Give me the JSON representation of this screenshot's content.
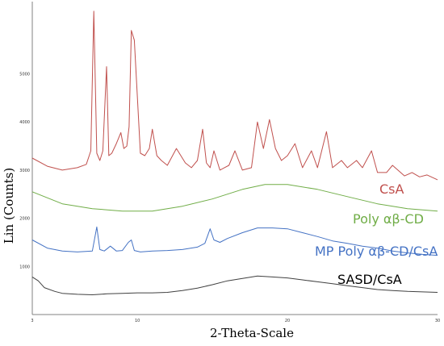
{
  "chart_data": {
    "type": "line",
    "xlabel": "2-Theta-Scale",
    "ylabel": "Lin (Counts)",
    "xlim": [
      3,
      30
    ],
    "ylim": [
      0,
      6500
    ],
    "grid": false,
    "x_ticks": [
      3,
      10,
      20,
      30
    ],
    "y_ticks": [
      1000,
      2000,
      3000,
      4000,
      5000
    ],
    "series": [
      {
        "name": "CsA",
        "color": "#c0504d",
        "x": [
          3,
          4,
          5,
          6,
          6.6,
          6.9,
          7.1,
          7.3,
          7.5,
          7.7,
          7.95,
          8.1,
          8.3,
          8.6,
          8.9,
          9.1,
          9.3,
          9.45,
          9.6,
          9.8,
          10.2,
          10.5,
          10.8,
          11.0,
          11.3,
          11.6,
          12.0,
          12.6,
          13.2,
          13.6,
          14.0,
          14.35,
          14.6,
          14.85,
          15.1,
          15.5,
          15.8,
          16.1,
          16.5,
          17.0,
          17.6,
          18.0,
          18.4,
          18.8,
          19.2,
          19.6,
          20.0,
          20.5,
          21.0,
          21.6,
          22.0,
          22.6,
          23.0,
          23.6,
          24.0,
          24.6,
          25.0,
          25.6,
          26.0,
          26.6,
          27.0,
          27.8,
          28.3,
          28.8,
          29.3,
          30
        ],
        "y": [
          3250,
          3080,
          3000,
          3050,
          3120,
          3400,
          6300,
          3350,
          3200,
          3400,
          5150,
          3300,
          3350,
          3550,
          3780,
          3450,
          3500,
          3900,
          5900,
          5700,
          3350,
          3300,
          3450,
          3850,
          3300,
          3200,
          3100,
          3450,
          3150,
          3050,
          3200,
          3850,
          3150,
          3050,
          3400,
          3000,
          3050,
          3100,
          3400,
          3000,
          3050,
          4000,
          3450,
          4050,
          3450,
          3200,
          3300,
          3550,
          3050,
          3400,
          3050,
          3800,
          3050,
          3200,
          3050,
          3200,
          3050,
          3400,
          2950,
          2950,
          3100,
          2880,
          2950,
          2860,
          2900,
          2800
        ]
      },
      {
        "name": "Poly αβ-CD",
        "color": "#70ad47",
        "x": [
          3,
          5,
          7,
          9,
          11,
          13,
          15,
          17,
          18.5,
          20,
          22,
          24,
          26,
          28,
          30
        ],
        "y": [
          2550,
          2300,
          2200,
          2150,
          2150,
          2250,
          2400,
          2600,
          2700,
          2700,
          2600,
          2450,
          2300,
          2200,
          2150
        ]
      },
      {
        "name": "MP Poly αβ-CD/CsA",
        "color": "#4472c4",
        "x": [
          3,
          4,
          5,
          6,
          7.0,
          7.3,
          7.5,
          7.8,
          8.2,
          8.6,
          9.0,
          9.4,
          9.6,
          9.8,
          10.2,
          11,
          12,
          13,
          14,
          14.5,
          14.85,
          15.1,
          15.5,
          16,
          17,
          18,
          19,
          20,
          21,
          22,
          23,
          24,
          25,
          26,
          27,
          28,
          29,
          30
        ],
        "y": [
          1550,
          1380,
          1320,
          1300,
          1320,
          1820,
          1350,
          1320,
          1420,
          1320,
          1330,
          1500,
          1550,
          1330,
          1300,
          1320,
          1330,
          1350,
          1400,
          1480,
          1780,
          1550,
          1500,
          1580,
          1700,
          1800,
          1800,
          1780,
          1700,
          1620,
          1530,
          1480,
          1420,
          1380,
          1320,
          1280,
          1250,
          1230
        ]
      },
      {
        "name": "SASD/CsA",
        "color": "#404040",
        "x": [
          3,
          3.4,
          3.8,
          4.5,
          5,
          6,
          7,
          8,
          9,
          10,
          11,
          12,
          13,
          14,
          15,
          16,
          17,
          18,
          19,
          20,
          21,
          22,
          23,
          24,
          25,
          26,
          27,
          28,
          29,
          30
        ],
        "y": [
          780,
          700,
          560,
          480,
          440,
          420,
          410,
          430,
          440,
          450,
          450,
          460,
          500,
          550,
          620,
          700,
          750,
          800,
          780,
          760,
          720,
          680,
          640,
          600,
          560,
          520,
          500,
          480,
          470,
          460
        ]
      }
    ]
  },
  "labels": {
    "csa": "CsA",
    "poly": "Poly αβ-CD",
    "mp": "MP Poly αβ-CD/CsA",
    "sasd": "SASD/CsA"
  }
}
